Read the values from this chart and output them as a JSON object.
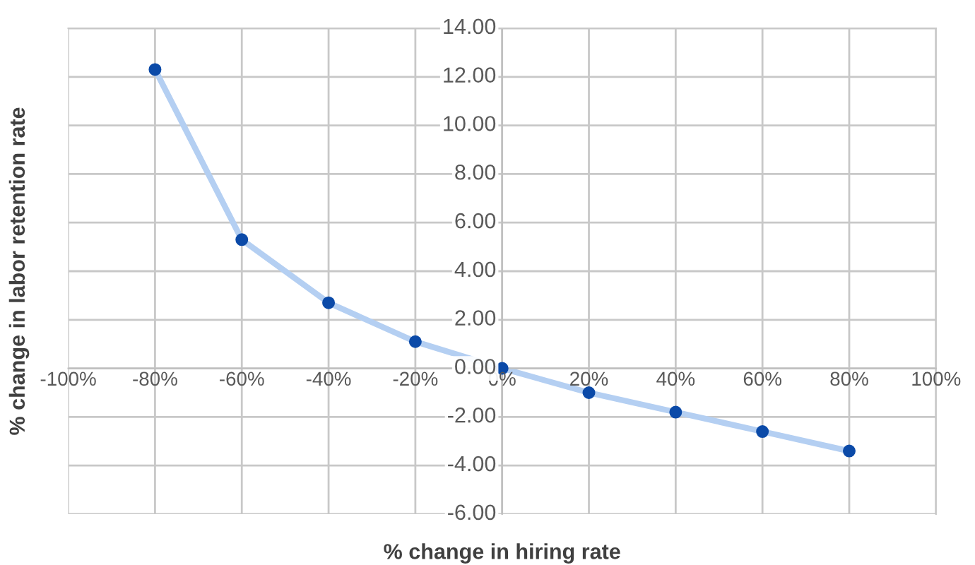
{
  "chart_data": {
    "type": "line",
    "xlabel": "% change in hiring rate",
    "ylabel": "% change in labor retention rate",
    "x": [
      -80,
      -60,
      -40,
      -20,
      0,
      20,
      40,
      60,
      80
    ],
    "series": [
      {
        "color": "#b4cff2",
        "colors": [
          "#0b4aa8",
          "#0b4aa8",
          "#0b4aa8",
          "#0b4aa8",
          "#0b4aa8",
          "#0b4aa8",
          "#0b4aa8",
          "#0b4aa8",
          "#0b4aa8"
        ],
        "values": [
          12.3,
          5.3,
          2.7,
          1.1,
          0,
          -1.0,
          -1.8,
          -2.6,
          -3.4
        ]
      }
    ],
    "xlim": [
      -100,
      100
    ],
    "xticks": [
      {
        "value": -100,
        "label": "-100%"
      },
      {
        "value": -80,
        "label": "-80%"
      },
      {
        "value": -60,
        "label": "-60%"
      },
      {
        "value": -40,
        "label": "-40%"
      },
      {
        "value": -20,
        "label": "-20%"
      },
      {
        "value": 0,
        "label": "0%"
      },
      {
        "value": 20,
        "label": "20%"
      },
      {
        "value": 40,
        "label": "40%"
      },
      {
        "value": 60,
        "label": "60%"
      },
      {
        "value": 80,
        "label": "80%"
      },
      {
        "value": 100,
        "label": "100%"
      }
    ],
    "ylim": [
      -6,
      14
    ],
    "yticks": [
      {
        "value": -6,
        "label": "-6.00"
      },
      {
        "value": -4,
        "label": "-4.00"
      },
      {
        "value": -2,
        "label": "-2.00"
      },
      {
        "value": 0,
        "label": "0.00"
      },
      {
        "value": 2,
        "label": "2.00"
      },
      {
        "value": 4,
        "label": "4.00"
      },
      {
        "value": 6,
        "label": "6.00"
      },
      {
        "value": 8,
        "label": "8.00"
      },
      {
        "value": 10,
        "label": "10.00"
      },
      {
        "value": 12,
        "label": "12.00"
      },
      {
        "value": 14,
        "label": "14.00"
      }
    ],
    "grid": true,
    "marker": "circle",
    "line_style": "solid"
  }
}
